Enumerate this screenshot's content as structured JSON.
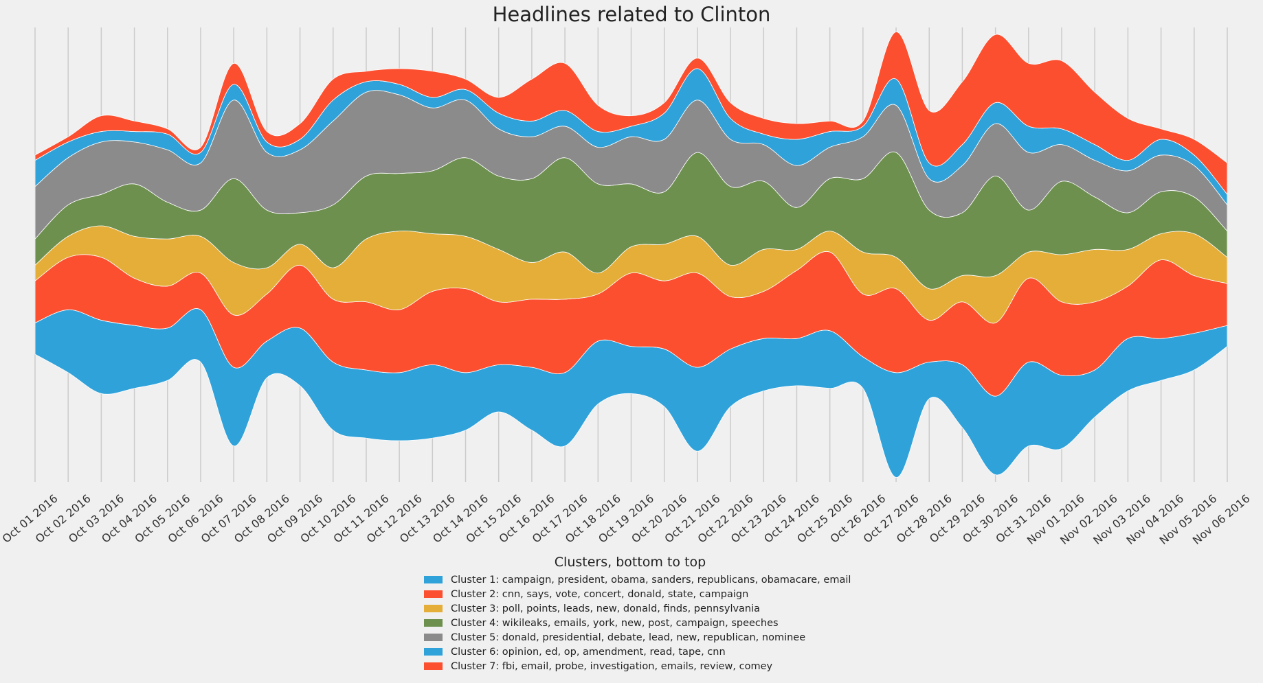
{
  "chart_data": {
    "type": "area",
    "style": "streamgraph",
    "title": "Headlines related to Clinton",
    "xlabel": "",
    "ylabel": "",
    "grid": "vertical",
    "legend_title": "Clusters, bottom to top",
    "legend_position": "bottom-center",
    "categories": [
      "Oct 01 2016",
      "Oct 02 2016",
      "Oct 03 2016",
      "Oct 04 2016",
      "Oct 05 2016",
      "Oct 06 2016",
      "Oct 07 2016",
      "Oct 08 2016",
      "Oct 09 2016",
      "Oct 10 2016",
      "Oct 11 2016",
      "Oct 12 2016",
      "Oct 13 2016",
      "Oct 14 2016",
      "Oct 15 2016",
      "Oct 16 2016",
      "Oct 17 2016",
      "Oct 18 2016",
      "Oct 19 2016",
      "Oct 20 2016",
      "Oct 21 2016",
      "Oct 22 2016",
      "Oct 23 2016",
      "Oct 24 2016",
      "Oct 25 2016",
      "Oct 26 2016",
      "Oct 27 2016",
      "Oct 28 2016",
      "Oct 29 2016",
      "Oct 30 2016",
      "Oct 31 2016",
      "Nov 01 2016",
      "Nov 02 2016",
      "Nov 03 2016",
      "Nov 04 2016",
      "Nov 05 2016",
      "Nov 06 2016"
    ],
    "series": [
      {
        "name": "Cluster 1: campaign, president, obama, sanders, republicans, obamacare, email",
        "color": "#30a2da",
        "values": [
          6,
          12,
          14,
          12,
          10,
          10,
          15,
          7,
          11,
          13,
          13,
          13,
          14,
          11,
          9,
          12,
          14,
          12,
          9,
          11,
          16,
          11,
          10,
          9,
          11,
          6,
          20,
          7,
          12,
          15,
          16,
          14,
          9,
          10,
          8,
          7,
          4
        ]
      },
      {
        "name": "Cluster 2: cnn, says, vote, concert, donald, state, campaign",
        "color": "#fc4f30",
        "values": [
          8,
          10,
          12,
          9,
          8,
          7,
          10,
          9,
          12,
          12,
          13,
          12,
          14,
          16,
          12,
          13,
          14,
          9,
          14,
          13,
          18,
          10,
          9,
          13,
          15,
          12,
          16,
          8,
          12,
          14,
          16,
          14,
          13,
          10,
          15,
          11,
          8
        ]
      },
      {
        "name": "Cluster 3: poll, points, leads, new, donald, finds, pennsylvania",
        "color": "#e5ae38",
        "values": [
          3,
          4,
          6,
          8,
          9,
          7,
          10,
          5,
          4,
          6,
          12,
          15,
          11,
          10,
          10,
          7,
          9,
          4,
          5,
          7,
          7,
          6,
          8,
          4,
          4,
          8,
          6,
          6,
          5,
          9,
          5,
          9,
          10,
          7,
          5,
          8,
          5
        ]
      },
      {
        "name": "Cluster 4: wikileaks, emails, york, new, post, campaign, speeches",
        "color": "#6d904f",
        "values": [
          5,
          6,
          6,
          10,
          7,
          5,
          16,
          11,
          6,
          12,
          12,
          11,
          12,
          15,
          14,
          16,
          18,
          17,
          12,
          10,
          16,
          15,
          13,
          8,
          10,
          14,
          20,
          15,
          12,
          19,
          8,
          14,
          10,
          7,
          8,
          7,
          5
        ]
      },
      {
        "name": "Cluster 5: donald, presidential, debate, lead, new, republican, nominee",
        "color": "#8b8b8b",
        "values": [
          10,
          9,
          10,
          8,
          10,
          9,
          15,
          11,
          12,
          16,
          16,
          15,
          12,
          11,
          9,
          8,
          6,
          7,
          9,
          10,
          10,
          9,
          7,
          8,
          6,
          8,
          9,
          6,
          9,
          10,
          11,
          7,
          7,
          8,
          7,
          6,
          5
        ]
      },
      {
        "name": "Cluster 6: opinion, ed, op, amendment, read, tape, cnn",
        "color": "#30a2da",
        "values": [
          5,
          3,
          2,
          2,
          3,
          2,
          3,
          2,
          2,
          4,
          2,
          2,
          2,
          2,
          3,
          3,
          3,
          3,
          2,
          5,
          6,
          4,
          2,
          5,
          3,
          2,
          5,
          3,
          4,
          4,
          5,
          3,
          3,
          2,
          3,
          2,
          2
        ]
      },
      {
        "name": "Cluster 7: fbi, email, probe, investigation, emails, review, comey",
        "color": "#fc4f30",
        "values": [
          1,
          1,
          3,
          2,
          1,
          1,
          4,
          2,
          3,
          4,
          2,
          3,
          5,
          2,
          3,
          8,
          9,
          5,
          2,
          2,
          2,
          3,
          3,
          3,
          2,
          1,
          9,
          10,
          12,
          13,
          12,
          13,
          10,
          8,
          2,
          3,
          6
        ]
      }
    ]
  }
}
